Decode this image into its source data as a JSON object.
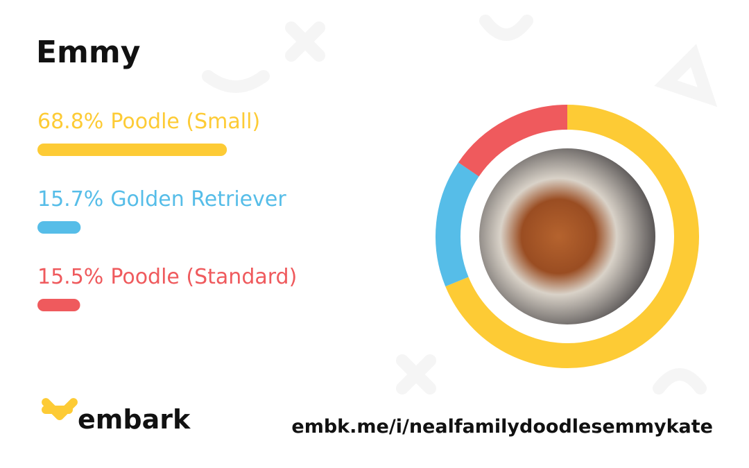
{
  "chart_data": {
    "type": "donut",
    "title": "Emmy",
    "categories": [
      "Poodle (Small)",
      "Golden Retriever",
      "Poodle (Standard)"
    ],
    "values": [
      68.8,
      15.7,
      15.5
    ],
    "value_labels": [
      "68.8%",
      "15.7%",
      "15.5%"
    ],
    "colors": [
      "#fdcb35",
      "#56bde8",
      "#ef5a5d"
    ]
  },
  "footer": {
    "brand": "embark",
    "url": "embk.me/i/nealfamilydoodlesemmykate"
  }
}
